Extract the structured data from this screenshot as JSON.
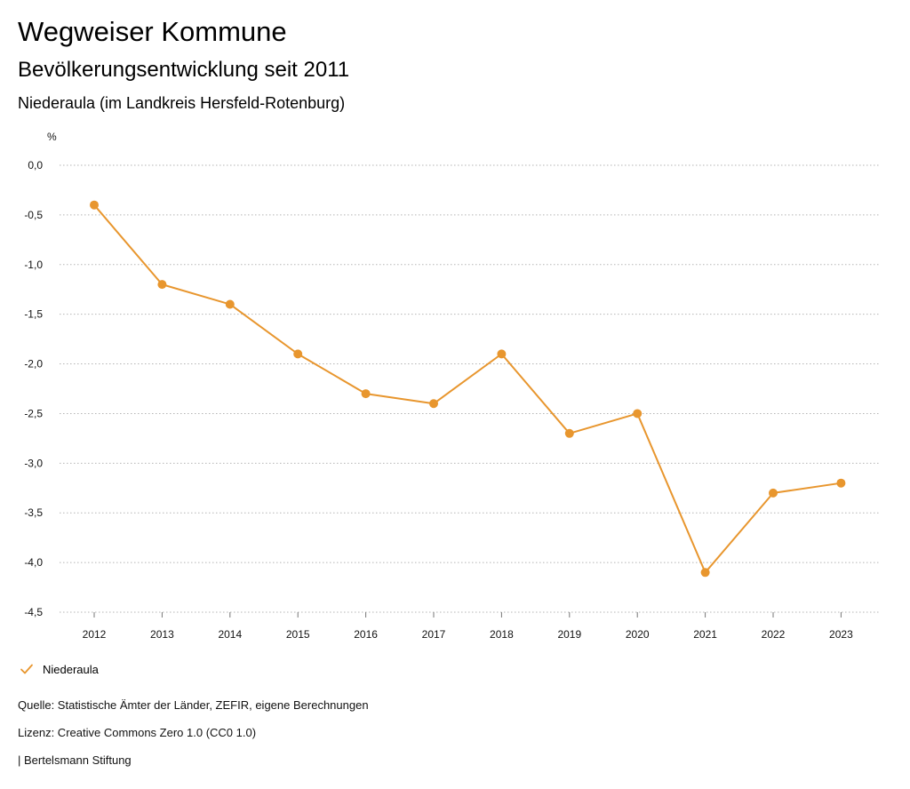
{
  "header": {
    "title": "Wegweiser Kommune",
    "subtitle": "Bevölkerungsentwicklung seit 2011",
    "region": "Niederaula (im Landkreis Hersfeld-Rotenburg)"
  },
  "chart_data": {
    "type": "line",
    "title": "Bevölkerungsentwicklung seit 2011",
    "subtitle": "Niederaula (im Landkreis Hersfeld-Rotenburg)",
    "ylabel": "%",
    "xlabel": "",
    "categories": [
      "2012",
      "2013",
      "2014",
      "2015",
      "2016",
      "2017",
      "2018",
      "2019",
      "2020",
      "2021",
      "2022",
      "2023"
    ],
    "series": [
      {
        "name": "Niederaula",
        "color": "#e8962e",
        "values": [
          -0.4,
          -1.2,
          -1.4,
          -1.9,
          -2.3,
          -2.4,
          -1.9,
          -2.7,
          -2.5,
          -4.1,
          -3.3,
          -3.2
        ]
      }
    ],
    "ylim": [
      -4.5,
      0.0
    ],
    "yticks": [
      0.0,
      -0.5,
      -1.0,
      -1.5,
      -2.0,
      -2.5,
      -3.0,
      -3.5,
      -4.0,
      -4.5
    ],
    "ytick_labels": [
      "0,0",
      "-0,5",
      "-1,0",
      "-1,5",
      "-2,0",
      "-2,5",
      "-3,0",
      "-3,5",
      "-4,0",
      "-4,5"
    ],
    "grid": true,
    "legend": "bottom-left"
  },
  "legend": {
    "label": "Niederaula",
    "icon": "checkmark-icon",
    "color": "#e8962e"
  },
  "footer": {
    "source": "Quelle: Statistische Ämter der Länder, ZEFIR, eigene Berechnungen",
    "license": "Lizenz: Creative Commons Zero 1.0 (CC0 1.0)",
    "brand": "| Bertelsmann Stiftung"
  }
}
